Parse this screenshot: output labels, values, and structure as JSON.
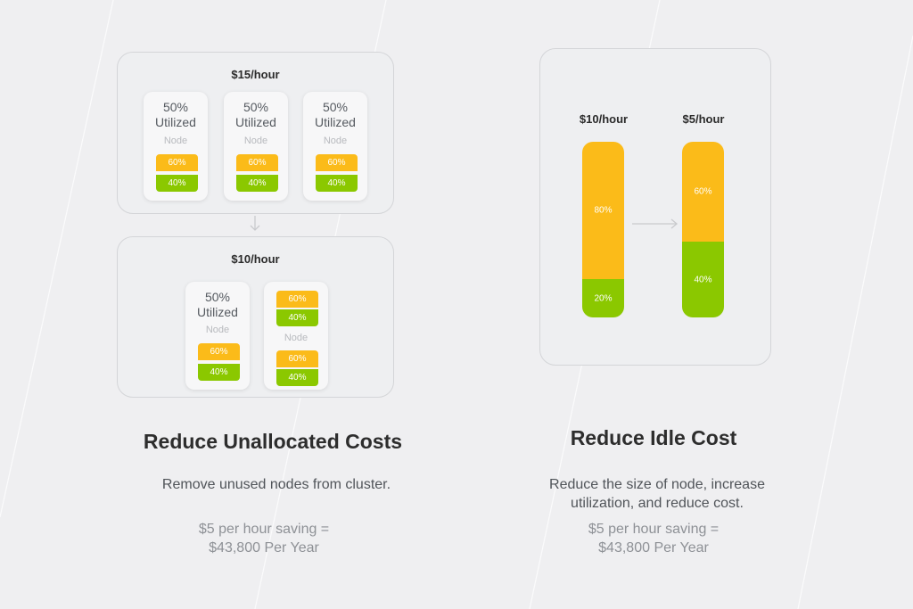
{
  "unallocated": {
    "before": {
      "price": "$15/hour",
      "nodes": [
        {
          "util_line1": "50%",
          "util_line2": "Utilized",
          "label": "Node",
          "top_pct": "60%",
          "bottom_pct": "40%"
        },
        {
          "util_line1": "50%",
          "util_line2": "Utilized",
          "label": "Node",
          "top_pct": "60%",
          "bottom_pct": "40%"
        },
        {
          "util_line1": "50%",
          "util_line2": "Utilized",
          "label": "Node",
          "top_pct": "60%",
          "bottom_pct": "40%"
        }
      ]
    },
    "after": {
      "price": "$10/hour",
      "node_a": {
        "util_line1": "50%",
        "util_line2": "Utilized",
        "label": "Node",
        "top_pct": "60%",
        "bottom_pct": "40%"
      },
      "node_b": {
        "label": "Node",
        "pod1_top": "60%",
        "pod1_bottom": "40%",
        "pod2_top": "60%",
        "pod2_bottom": "40%"
      }
    },
    "heading": "Reduce Unallocated Costs",
    "description": "Remove unused nodes from cluster.",
    "saving_line1": "$5 per hour saving =",
    "saving_line2": "$43,800 Per Year"
  },
  "idle": {
    "bars": [
      {
        "price": "$10/hour",
        "top_label": "80%",
        "bottom_label": "20%",
        "bottom_fraction": 0.22
      },
      {
        "price": "$5/hour",
        "top_label": "60%",
        "bottom_label": "40%",
        "bottom_fraction": 0.43
      }
    ],
    "heading": "Reduce Idle Cost",
    "description_line1": "Reduce the size of node, increase",
    "description_line2": "utilization, and reduce cost.",
    "saving_line1": "$5 per hour saving =",
    "saving_line2": "$43,800 Per Year"
  },
  "colors": {
    "allocated": "#fbbb19",
    "used": "#8bc800",
    "background": "#efeff1"
  }
}
